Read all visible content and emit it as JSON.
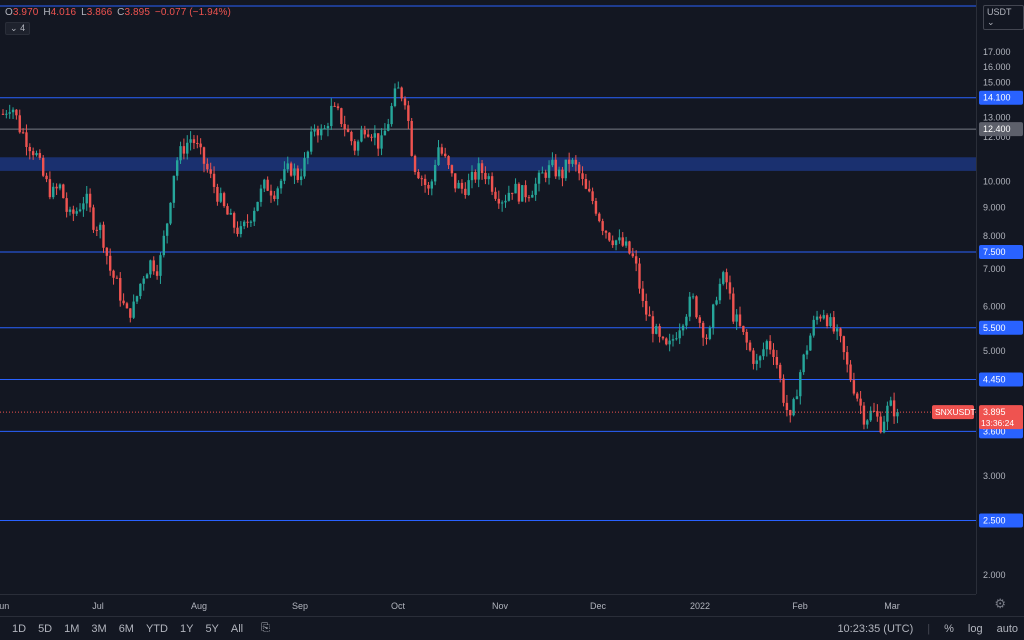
{
  "legend": {
    "o_label": "O",
    "o_value": "3.970",
    "h_label": "H",
    "h_value": "4.016",
    "l_label": "L",
    "l_value": "3.866",
    "c_label": "C",
    "c_value": "3.895",
    "change": "−0.077 (−1.94%)"
  },
  "indicator_toggle": {
    "label": "4",
    "icon": "chevron-down-icon"
  },
  "currency_selector": {
    "label": "USDT",
    "icon": "chevron-down-icon"
  },
  "colors": {
    "background": "#131722",
    "up": "#26a69a",
    "down": "#ef5350",
    "level_line": "#2962ff",
    "zone_fill": "#1e3a8a",
    "grey_label": "#5d606b",
    "last_price": "#ef5350"
  },
  "price_axis": {
    "ticks": [
      "17.000",
      "16.000",
      "15.000",
      "13.000",
      "12.000",
      "10.000",
      "9.000",
      "8.000",
      "7.000",
      "6.000",
      "5.000",
      "3.000",
      "2.000"
    ]
  },
  "levels": [
    {
      "value": 14.1,
      "label": "14.100",
      "style": "blue"
    },
    {
      "value": 12.4,
      "label": "12.400",
      "style": "grey"
    },
    {
      "value": 7.5,
      "label": "7.500",
      "style": "blue"
    },
    {
      "value": 5.5,
      "label": "5.500",
      "style": "blue"
    },
    {
      "value": 4.45,
      "label": "4.450",
      "style": "blue"
    },
    {
      "value": 3.6,
      "label": "3.600",
      "style": "blue"
    },
    {
      "value": 2.5,
      "label": "2.500",
      "style": "blue"
    },
    {
      "value": 18.0,
      "label": "",
      "style": "blue"
    }
  ],
  "zone": {
    "from": 10.45,
    "to": 11.05
  },
  "last_price": {
    "symbol": "SNXUSDT",
    "price": "3.895",
    "countdown": "13:36:24",
    "value": 3.895
  },
  "time_axis": {
    "labels": [
      "Jun",
      "Jul",
      "Aug",
      "Sep",
      "Oct",
      "Nov",
      "Dec",
      "2022",
      "Feb",
      "Mar"
    ]
  },
  "bottom_bar": {
    "timeframes": [
      "1D",
      "5D",
      "1M",
      "3M",
      "6M",
      "YTD",
      "1Y",
      "5Y",
      "All"
    ],
    "compare_icon": "calendar-range-icon",
    "clock": "10:23:35 (UTC)",
    "percent": "%",
    "log": "log",
    "auto": "auto"
  },
  "chart_data": {
    "type": "candlestick",
    "symbol": "SNXUSDT",
    "x_labels": [
      "Jun",
      "Jul",
      "Aug",
      "Sep",
      "Oct",
      "Nov",
      "Dec",
      "2022",
      "Feb",
      "Mar"
    ],
    "ylim": [
      1.5,
      18.5
    ],
    "close_path": [
      13.2,
      13.8,
      12.5,
      11.8,
      11.2,
      10.1,
      9.5,
      9.8,
      8.6,
      8.9,
      9.4,
      8.5,
      8.2,
      7.0,
      6.5,
      5.8,
      6.0,
      6.8,
      7.2,
      7.0,
      8.5,
      10.8,
      11.5,
      12.0,
      11.2,
      10.4,
      9.6,
      8.9,
      8.4,
      8.1,
      8.6,
      9.3,
      9.9,
      9.6,
      10.1,
      10.6,
      10.2,
      11.0,
      12.6,
      12.1,
      13.4,
      13.1,
      12.2,
      11.4,
      12.6,
      12.3,
      11.5,
      12.9,
      14.6,
      14.1,
      10.8,
      10.2,
      9.5,
      11.6,
      10.8,
      9.9,
      9.7,
      10.0,
      10.5,
      10.3,
      9.6,
      9.3,
      9.8,
      9.5,
      9.6,
      9.9,
      10.4,
      10.6,
      10.2,
      10.9,
      10.5,
      9.6,
      9.2,
      8.4,
      8.0,
      7.8,
      7.6,
      7.2,
      6.0,
      5.6,
      5.2,
      5.0,
      5.4,
      5.8,
      6.2,
      5.6,
      5.2,
      6.4,
      6.8,
      5.8,
      5.4,
      5.0,
      4.7,
      5.2,
      5.0,
      4.2,
      3.7,
      4.5,
      5.1,
      5.7,
      5.9,
      5.5,
      5.2,
      4.6,
      4.2,
      3.8,
      3.9,
      3.7,
      4.0,
      3.895
    ]
  }
}
